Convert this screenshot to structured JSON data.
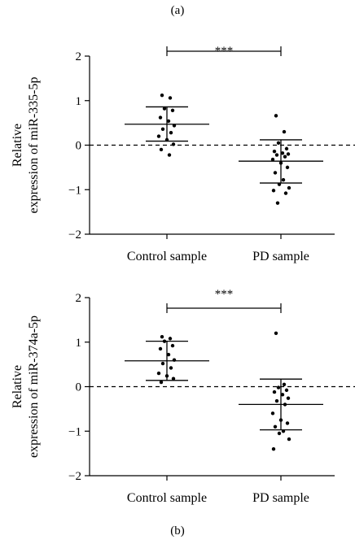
{
  "chart_data": [
    {
      "type": "scatter",
      "panel_label": "(a)",
      "ylabel": [
        "Relative",
        "expression of miR-335-5p"
      ],
      "categories": [
        "Control sample",
        "PD sample"
      ],
      "ylim": [
        -2,
        2
      ],
      "yticks": [
        "2",
        "1",
        "0",
        "−1",
        "−2"
      ],
      "significance": "***",
      "reference_line_y": 0,
      "groups": [
        {
          "name": "Control sample",
          "mean": 0.47,
          "sd_upper": 0.86,
          "sd_lower": 0.09,
          "points": [
            1.12,
            1.06,
            0.82,
            0.78,
            0.62,
            0.54,
            0.44,
            0.36,
            0.28,
            0.2,
            0.12,
            0.02,
            -0.1,
            -0.22
          ]
        },
        {
          "name": "PD sample",
          "mean": -0.36,
          "sd_upper": 0.12,
          "sd_lower": -0.85,
          "points": [
            0.66,
            0.3,
            0.05,
            -0.08,
            -0.14,
            -0.18,
            -0.2,
            -0.22,
            -0.26,
            -0.32,
            -0.4,
            -0.5,
            -0.62,
            -0.78,
            -0.88,
            -0.96,
            -1.02,
            -1.08,
            -1.3
          ]
        }
      ]
    },
    {
      "type": "scatter",
      "panel_label": "(b)",
      "ylabel": [
        "Relative",
        "expression of miR-374a-5p"
      ],
      "categories": [
        "Control sample",
        "PD sample"
      ],
      "ylim": [
        -2,
        2
      ],
      "yticks": [
        "2",
        "1",
        "0",
        "−1",
        "−2"
      ],
      "significance": "***",
      "reference_line_y": 0,
      "groups": [
        {
          "name": "Control sample",
          "mean": 0.58,
          "sd_upper": 1.02,
          "sd_lower": 0.14,
          "points": [
            1.12,
            1.08,
            1.02,
            0.92,
            0.85,
            0.72,
            0.6,
            0.52,
            0.42,
            0.3,
            0.24,
            0.18,
            0.1
          ]
        },
        {
          "name": "PD sample",
          "mean": -0.4,
          "sd_upper": 0.17,
          "sd_lower": -0.97,
          "points": [
            1.2,
            0.05,
            -0.02,
            -0.08,
            -0.12,
            -0.18,
            -0.26,
            -0.32,
            -0.4,
            -0.6,
            -0.75,
            -0.82,
            -0.9,
            -1.0,
            -1.05,
            -1.18,
            -1.4
          ]
        }
      ]
    }
  ]
}
